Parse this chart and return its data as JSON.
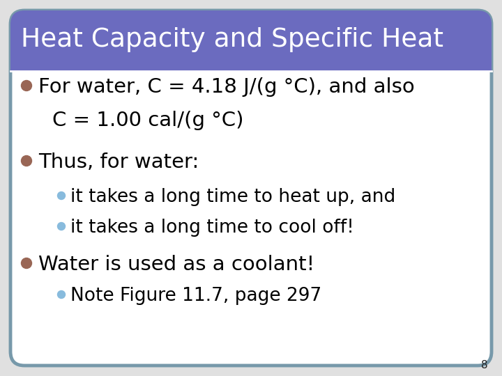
{
  "title": "Heat Capacity and Specific Heat",
  "title_bg_color": "#6B6BBF",
  "title_text_color": "#FFFFFF",
  "slide_bg_color": "#FFFFFF",
  "border_color": "#7799AA",
  "page_number": "8",
  "bullet_color_main": "#996655",
  "bullet_color_sub": "#88BBDD",
  "content_lines": [
    {
      "level": 0,
      "text": "For water, C = 4.18 J/(g °C), and also",
      "bullet_color": "#996655",
      "fontsize": 21
    },
    {
      "level": -1,
      "text": "C = 1.00 cal/(g °C)",
      "bullet_color": null,
      "fontsize": 21
    },
    {
      "level": 0,
      "text": "Thus, for water:",
      "bullet_color": "#996655",
      "fontsize": 21
    },
    {
      "level": 1,
      "text": "it takes a long time to heat up, and",
      "bullet_color": "#88BBDD",
      "fontsize": 19
    },
    {
      "level": 1,
      "text": "it takes a long time to cool off!",
      "bullet_color": "#88BBDD",
      "fontsize": 19
    },
    {
      "level": 0,
      "text": "Water is used as a coolant!",
      "bullet_color": "#996655",
      "fontsize": 21
    },
    {
      "level": 1,
      "text": "Note Figure 11.7, page 297",
      "bullet_color": "#88BBDD",
      "fontsize": 19
    }
  ]
}
